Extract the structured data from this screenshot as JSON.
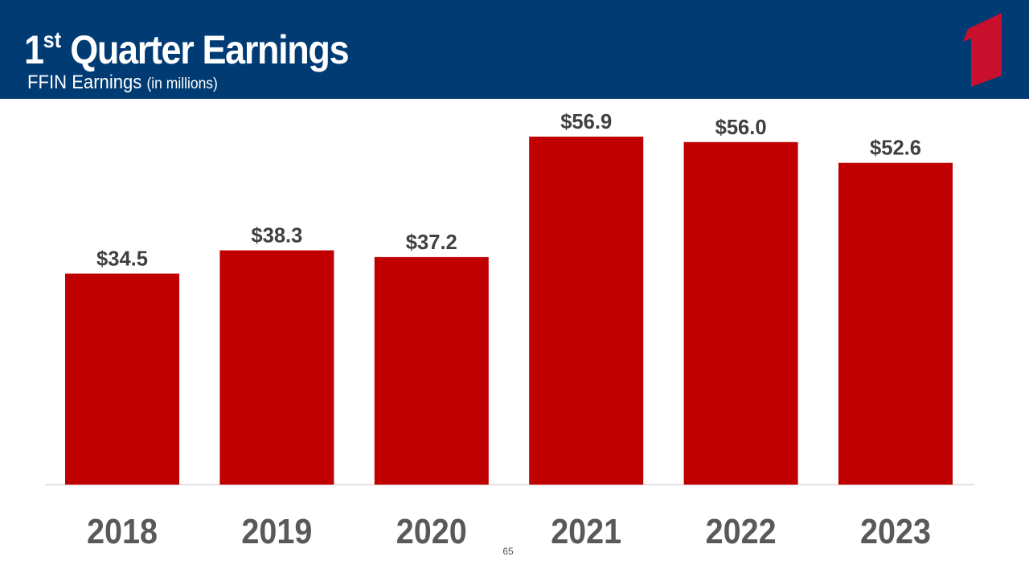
{
  "header": {
    "title_main": "1",
    "title_sup": "st",
    "title_rest": " Quarter Earnings",
    "subtitle_main": "FFIN Earnings ",
    "subtitle_small": "(in millions)"
  },
  "page_number": "65",
  "colors": {
    "header_bg": "#003b73",
    "bar": "#c00000",
    "logo": "#c8102e",
    "label_text": "#404040",
    "axis_text": "#595959",
    "axis_line": "#d9d9d9"
  },
  "chart_data": {
    "type": "bar",
    "categories": [
      "2018",
      "2019",
      "2020",
      "2021",
      "2022",
      "2023"
    ],
    "values": [
      34.5,
      38.3,
      37.2,
      56.9,
      56.0,
      52.6
    ],
    "data_labels": [
      "$34.5",
      "$38.3",
      "$37.2",
      "$56.9",
      "$56.0",
      "$52.6"
    ],
    "ylim": [
      0,
      56.9
    ],
    "grid": false,
    "legend": "none"
  }
}
